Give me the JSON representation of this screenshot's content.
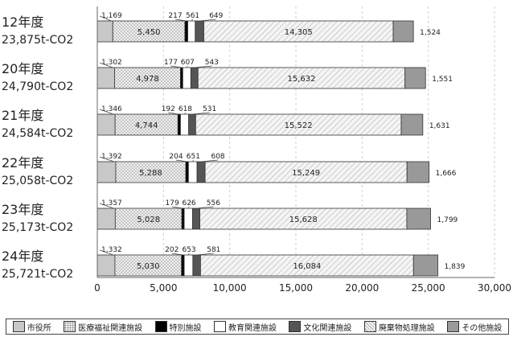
{
  "chart_data": {
    "type": "bar",
    "orientation": "horizontal",
    "stacked": true,
    "categories": [
      {
        "year": "12年度",
        "total": "23,875t-CO2",
        "tail_label": "1,524"
      },
      {
        "year": "20年度",
        "total": "24,790t-CO2",
        "tail_label": "1,551"
      },
      {
        "year": "21年度",
        "total": "24,584t-CO2",
        "tail_label": "1,631"
      },
      {
        "year": "22年度",
        "total": "25,058t-CO2",
        "tail_label": "1,666"
      },
      {
        "year": "23年度",
        "total": "25,173t-CO2",
        "tail_label": "1,799"
      },
      {
        "year": "24年度",
        "total": "25,721t-CO2",
        "tail_label": "1,839"
      }
    ],
    "series": [
      {
        "name": "市役所",
        "color": "#c8c8c8",
        "pattern": "solid",
        "values": [
          1169,
          1302,
          1346,
          1392,
          1357,
          1332
        ],
        "labels": [
          "1,169",
          "1,302",
          "1,346",
          "1,392",
          "1,357",
          "1,332"
        ]
      },
      {
        "name": "医療福祉関連施設",
        "color": "#e6e6e6",
        "pattern": "dots",
        "values": [
          5450,
          4978,
          4744,
          5288,
          5028,
          5030
        ],
        "labels": [
          "5,450",
          "4,978",
          "4,744",
          "5,288",
          "5,028",
          "5,030"
        ]
      },
      {
        "name": "特別施設",
        "color": "#000000",
        "pattern": "solid",
        "values": [
          217,
          177,
          192,
          204,
          179,
          202
        ],
        "labels": [
          "217",
          "177",
          "192",
          "204",
          "179",
          "202"
        ]
      },
      {
        "name": "教育関連施設",
        "color": "#ffffff",
        "pattern": "solid",
        "values": [
          561,
          607,
          618,
          651,
          626,
          653
        ],
        "labels": [
          "561",
          "607",
          "618",
          "651",
          "626",
          "653"
        ]
      },
      {
        "name": "文化関連施設",
        "color": "#555555",
        "pattern": "solid",
        "values": [
          649,
          543,
          531,
          608,
          556,
          581
        ],
        "labels": [
          "649",
          "543",
          "531",
          "608",
          "556",
          "581"
        ]
      },
      {
        "name": "廃棄物処理施設",
        "color": "#ececec",
        "pattern": "hatch",
        "values": [
          14305,
          15632,
          15522,
          15249,
          15628,
          16084
        ],
        "labels": [
          "14,305",
          "15,632",
          "15,522",
          "15,249",
          "15,628",
          "16,084"
        ]
      },
      {
        "name": "その他施設",
        "color": "#999999",
        "pattern": "solid",
        "values": [
          1524,
          1551,
          1631,
          1666,
          1799,
          1839
        ],
        "labels": [
          "1,524",
          "1,551",
          "1,631",
          "1,666",
          "1,799",
          "1,839"
        ]
      }
    ],
    "xlim": [
      0,
      30000
    ],
    "xticks": [
      0,
      5000,
      10000,
      15000,
      20000,
      25000,
      30000
    ],
    "xtick_labels": [
      "0",
      "5,000",
      "10,000",
      "15,000",
      "20,000",
      "25,000",
      "30,000"
    ],
    "grid": "vertical dashed",
    "legend_position": "bottom"
  }
}
